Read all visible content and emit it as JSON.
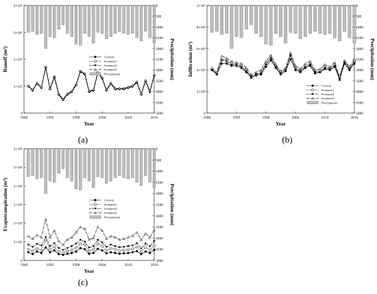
{
  "chart_data": [
    {
      "type": "line",
      "panel_label": "(a)",
      "xlabel": "Year",
      "ylabel": "Runoff (m³)",
      "y2label": "Precipitation (mm)",
      "xlim": [
        1986,
        2016
      ],
      "xticks": [
        "1986",
        "1992",
        "1998",
        "2004",
        "2010",
        "2016"
      ],
      "ylim": [
        0,
        40000000
      ],
      "yticks": [
        "0",
        "1×10⁷",
        "2×10⁷",
        "3×10⁷",
        "4×10⁷"
      ],
      "y2lim": [
        0,
        5000
      ],
      "y2ticks": [
        "0",
        "500",
        "1000",
        "1500",
        "2000",
        "2500",
        "3000",
        "3500",
        "4000",
        "4500",
        "5000"
      ],
      "legend_position": "center-right",
      "x": [
        1987,
        1988,
        1989,
        1990,
        1991,
        1992,
        1993,
        1994,
        1995,
        1996,
        1997,
        1998,
        1999,
        2000,
        2001,
        2002,
        2003,
        2004,
        2005,
        2006,
        2007,
        2008,
        2009,
        2010,
        2011,
        2012,
        2013,
        2014,
        2015,
        2016
      ],
      "precipitation": [
        1250,
        1200,
        1350,
        1300,
        2000,
        1450,
        1500,
        1100,
        900,
        1300,
        1450,
        1800,
        1850,
        1300,
        1450,
        1750,
        1250,
        1300,
        1550,
        1450,
        1300,
        1200,
        1300,
        1350,
        1300,
        1500,
        1650,
        1200,
        1500,
        1750
      ],
      "series": [
        {
          "name": "Current",
          "values": [
            10.0,
            8.5,
            11.0,
            9.5,
            17.0,
            9.0,
            13.5,
            7.0,
            5.0,
            7.0,
            8.0,
            10.5,
            15.5,
            14.5,
            8.0,
            8.5,
            15.0,
            13.0,
            8.5,
            11.0,
            9.0,
            9.0,
            9.0,
            9.5,
            10.0,
            11.5,
            7.0,
            12.0,
            8.0,
            14.0
          ]
        },
        {
          "name": "Scenario1",
          "values": [
            10.0,
            8.5,
            11.0,
            9.5,
            17.0,
            9.0,
            13.5,
            7.0,
            5.0,
            7.0,
            8.0,
            10.5,
            15.5,
            14.5,
            8.0,
            8.5,
            15.0,
            13.0,
            8.5,
            11.0,
            9.0,
            9.0,
            9.0,
            9.5,
            10.0,
            11.5,
            7.0,
            12.0,
            8.0,
            14.0
          ]
        },
        {
          "name": "Scenario2",
          "values": [
            10.0,
            8.3,
            11.0,
            9.3,
            16.8,
            8.8,
            13.2,
            6.8,
            4.8,
            6.8,
            7.8,
            10.3,
            15.3,
            14.3,
            7.8,
            8.3,
            14.8,
            12.8,
            8.3,
            10.8,
            8.8,
            8.8,
            8.8,
            9.3,
            9.8,
            11.3,
            6.8,
            11.8,
            7.8,
            13.8
          ]
        },
        {
          "name": "Scenario3",
          "values": [
            10.2,
            8.7,
            11.2,
            9.7,
            17.2,
            9.2,
            13.7,
            7.2,
            5.2,
            7.2,
            8.2,
            10.7,
            15.7,
            14.7,
            8.2,
            8.7,
            15.2,
            13.2,
            8.7,
            11.2,
            9.2,
            9.2,
            9.2,
            9.7,
            10.2,
            11.7,
            7.2,
            12.2,
            8.2,
            14.2
          ]
        }
      ],
      "series_scale": 1000000,
      "legend": [
        "Current",
        "Scenario1",
        "Scenario2",
        "Scenario3",
        "Precipitation"
      ]
    },
    {
      "type": "line",
      "panel_label": "(b)",
      "xlabel": "Year",
      "ylabel": "Infiltration (m³)",
      "y2label": "Precipitation (mm)",
      "xlim": [
        1986,
        2016
      ],
      "xticks": [
        "1986",
        "1992",
        "1998",
        "2004",
        "2010",
        "2016"
      ],
      "ylim": [
        0,
        10000000
      ],
      "yticks": [
        "0",
        "2×10⁶",
        "4×10⁶",
        "6×10⁶",
        "8×10⁶",
        "1×10⁷"
      ],
      "y2lim": [
        0,
        5000
      ],
      "y2ticks": [
        "0",
        "500",
        "1000",
        "1500",
        "2000",
        "2500",
        "3000",
        "3500",
        "4000",
        "4500",
        "5000"
      ],
      "legend_position": "bottom-right",
      "x": [
        1987,
        1988,
        1989,
        1990,
        1991,
        1992,
        1993,
        1994,
        1995,
        1996,
        1997,
        1998,
        1999,
        2000,
        2001,
        2002,
        2003,
        2004,
        2005,
        2006,
        2007,
        2008,
        2009,
        2010,
        2011,
        2012,
        2013,
        2014,
        2015,
        2016
      ],
      "precipitation": [
        1250,
        1200,
        1350,
        1300,
        2000,
        1450,
        1500,
        1100,
        900,
        1300,
        1450,
        1800,
        1850,
        1300,
        1450,
        1750,
        1250,
        1300,
        1550,
        1450,
        1300,
        1200,
        1300,
        1350,
        1300,
        1500,
        1650,
        1200,
        1500,
        1750
      ],
      "series": [
        {
          "name": "Current",
          "values": [
            4.0,
            3.6,
            4.6,
            4.6,
            4.4,
            4.4,
            4.2,
            3.8,
            3.3,
            3.5,
            3.6,
            4.3,
            4.9,
            4.2,
            3.6,
            3.9,
            5.0,
            4.0,
            3.8,
            4.2,
            4.4,
            3.7,
            3.8,
            4.1,
            4.0,
            4.3,
            3.1,
            4.6,
            4.0,
            4.6
          ]
        },
        {
          "name": "Scenario1",
          "values": [
            4.1,
            3.7,
            5.0,
            4.9,
            4.6,
            4.6,
            4.4,
            4.0,
            3.4,
            3.6,
            3.8,
            4.6,
            5.2,
            4.4,
            3.8,
            4.1,
            5.4,
            4.2,
            4.0,
            4.4,
            4.6,
            3.9,
            3.9,
            4.3,
            4.2,
            4.5,
            3.3,
            4.8,
            4.2,
            4.8
          ]
        },
        {
          "name": "Scenario2",
          "values": [
            4.0,
            3.7,
            4.9,
            4.8,
            4.5,
            4.5,
            4.3,
            3.9,
            3.4,
            3.6,
            3.7,
            4.5,
            5.1,
            4.3,
            3.7,
            4.0,
            5.3,
            4.1,
            3.9,
            4.3,
            4.5,
            3.8,
            3.8,
            4.2,
            4.1,
            4.4,
            3.2,
            4.7,
            4.1,
            4.7
          ]
        },
        {
          "name": "Scenario3",
          "values": [
            4.2,
            3.8,
            5.3,
            5.1,
            4.8,
            4.7,
            4.6,
            4.2,
            3.6,
            3.8,
            4.0,
            4.8,
            5.4,
            4.5,
            3.9,
            4.2,
            5.6,
            4.4,
            4.1,
            4.6,
            4.8,
            4.0,
            4.1,
            4.5,
            4.3,
            4.7,
            3.4,
            4.9,
            4.3,
            5.0
          ]
        }
      ],
      "series_scale": 1000000,
      "legend": [
        "Current",
        "Scenario1",
        "Scenario2",
        "Scenario3",
        "Precipitation"
      ]
    },
    {
      "type": "line",
      "panel_label": "(c)",
      "xlabel": "Year",
      "ylabel": "Evapotranspiration (m³)",
      "y2label": "Precipitation (mm)",
      "xlim": [
        1986,
        2016
      ],
      "xticks": [
        "1986",
        "1992",
        "1998",
        "2004",
        "2010",
        "2016"
      ],
      "ylim": [
        0,
        3000000
      ],
      "yticks": [
        "0",
        "5×10⁵",
        "1×10⁶",
        "2×10⁶",
        "2×10⁶",
        "3×10⁶",
        "3×10⁶"
      ],
      "y2lim": [
        0,
        5000
      ],
      "y2ticks": [
        "0",
        "500",
        "1000",
        "1500",
        "2000",
        "2500",
        "3000",
        "3500",
        "4000",
        "4500",
        "5000"
      ],
      "legend_position": "center-right",
      "x": [
        1987,
        1988,
        1989,
        1990,
        1991,
        1992,
        1993,
        1994,
        1995,
        1996,
        1997,
        1998,
        1999,
        2000,
        2001,
        2002,
        2003,
        2004,
        2005,
        2006,
        2007,
        2008,
        2009,
        2010,
        2011,
        2012,
        2013,
        2014,
        2015,
        2016
      ],
      "precipitation": [
        1250,
        1200,
        1350,
        1300,
        2000,
        1450,
        1500,
        1100,
        900,
        1300,
        1450,
        1800,
        1850,
        1300,
        1450,
        1750,
        1250,
        1300,
        1550,
        1450,
        1300,
        1200,
        1300,
        1350,
        1300,
        1500,
        1650,
        1200,
        1500,
        1750
      ],
      "series": [
        {
          "name": "Current",
          "values": [
            0.22,
            0.17,
            0.24,
            0.2,
            0.35,
            0.22,
            0.27,
            0.17,
            0.15,
            0.18,
            0.2,
            0.24,
            0.33,
            0.3,
            0.18,
            0.2,
            0.31,
            0.27,
            0.19,
            0.22,
            0.2,
            0.18,
            0.19,
            0.2,
            0.22,
            0.25,
            0.17,
            0.24,
            0.2,
            0.28
          ]
        },
        {
          "name": "Scenario1",
          "values": [
            0.3,
            0.25,
            0.32,
            0.28,
            0.55,
            0.3,
            0.36,
            0.24,
            0.2,
            0.25,
            0.28,
            0.34,
            0.45,
            0.42,
            0.25,
            0.3,
            0.45,
            0.38,
            0.27,
            0.32,
            0.3,
            0.26,
            0.27,
            0.29,
            0.31,
            0.36,
            0.24,
            0.35,
            0.28,
            0.4
          ]
        },
        {
          "name": "Scenario2",
          "values": [
            0.42,
            0.36,
            0.44,
            0.4,
            0.62,
            0.38,
            0.46,
            0.33,
            0.28,
            0.33,
            0.38,
            0.45,
            0.55,
            0.5,
            0.34,
            0.38,
            0.55,
            0.48,
            0.36,
            0.42,
            0.38,
            0.35,
            0.36,
            0.38,
            0.4,
            0.46,
            0.32,
            0.45,
            0.38,
            0.52
          ]
        },
        {
          "name": "Scenario3",
          "values": [
            0.65,
            0.58,
            0.68,
            0.62,
            1.1,
            0.62,
            0.8,
            0.52,
            0.42,
            0.56,
            0.62,
            0.75,
            0.9,
            0.85,
            0.56,
            0.6,
            0.9,
            0.8,
            0.58,
            0.65,
            0.62,
            0.56,
            0.58,
            0.62,
            0.66,
            0.75,
            0.55,
            0.72,
            0.62,
            0.82
          ]
        }
      ],
      "series_scale": 1000000,
      "legend": [
        "Current",
        "Scenario1",
        "Scenario2",
        "Scenario3",
        "Precipitation"
      ]
    }
  ]
}
